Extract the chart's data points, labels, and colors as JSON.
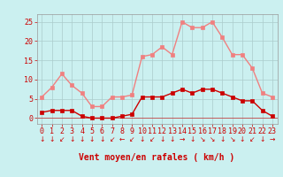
{
  "hours": [
    0,
    1,
    2,
    3,
    4,
    5,
    6,
    7,
    8,
    9,
    10,
    11,
    12,
    13,
    14,
    15,
    16,
    17,
    18,
    19,
    20,
    21,
    22,
    23
  ],
  "rafales": [
    5.5,
    8.0,
    11.5,
    8.5,
    6.5,
    3.0,
    3.0,
    5.5,
    5.5,
    6.0,
    16.0,
    16.5,
    18.5,
    16.5,
    25.0,
    23.5,
    23.5,
    25.0,
    21.0,
    16.5,
    16.5,
    13.0,
    6.5,
    5.5
  ],
  "vent_moyen": [
    1.5,
    2.0,
    2.0,
    2.0,
    0.5,
    0.0,
    0.0,
    0.0,
    0.5,
    1.0,
    5.5,
    5.5,
    5.5,
    6.5,
    7.5,
    6.5,
    7.5,
    7.5,
    6.5,
    5.5,
    4.5,
    4.5,
    2.0,
    0.5
  ],
  "color_rafales": "#F08080",
  "color_moyen": "#CC0000",
  "bg_color": "#CBF0F0",
  "grid_color": "#AACCCC",
  "xlabel": "Vent moyen/en rafales ( km/h )",
  "ylabel_ticks": [
    0,
    5,
    10,
    15,
    20,
    25
  ],
  "ylim": [
    -1.5,
    27
  ],
  "xlim": [
    -0.5,
    23.5
  ],
  "tick_color": "#CC0000",
  "label_color": "#CC0000",
  "marker": "s",
  "markersize": 2.5,
  "linewidth": 1.0,
  "xlabel_fontsize": 7,
  "tick_fontsize": 6,
  "arrow_symbols": [
    "↓",
    "↓",
    "↙",
    "↓",
    "↓",
    "↓",
    "↓",
    "↙",
    "←",
    "↙",
    "↓",
    "↙",
    "↓",
    "↓",
    "→",
    "↓",
    "↘",
    "↘",
    "↓",
    "↘",
    "↓",
    "↙",
    "↓",
    "→"
  ]
}
